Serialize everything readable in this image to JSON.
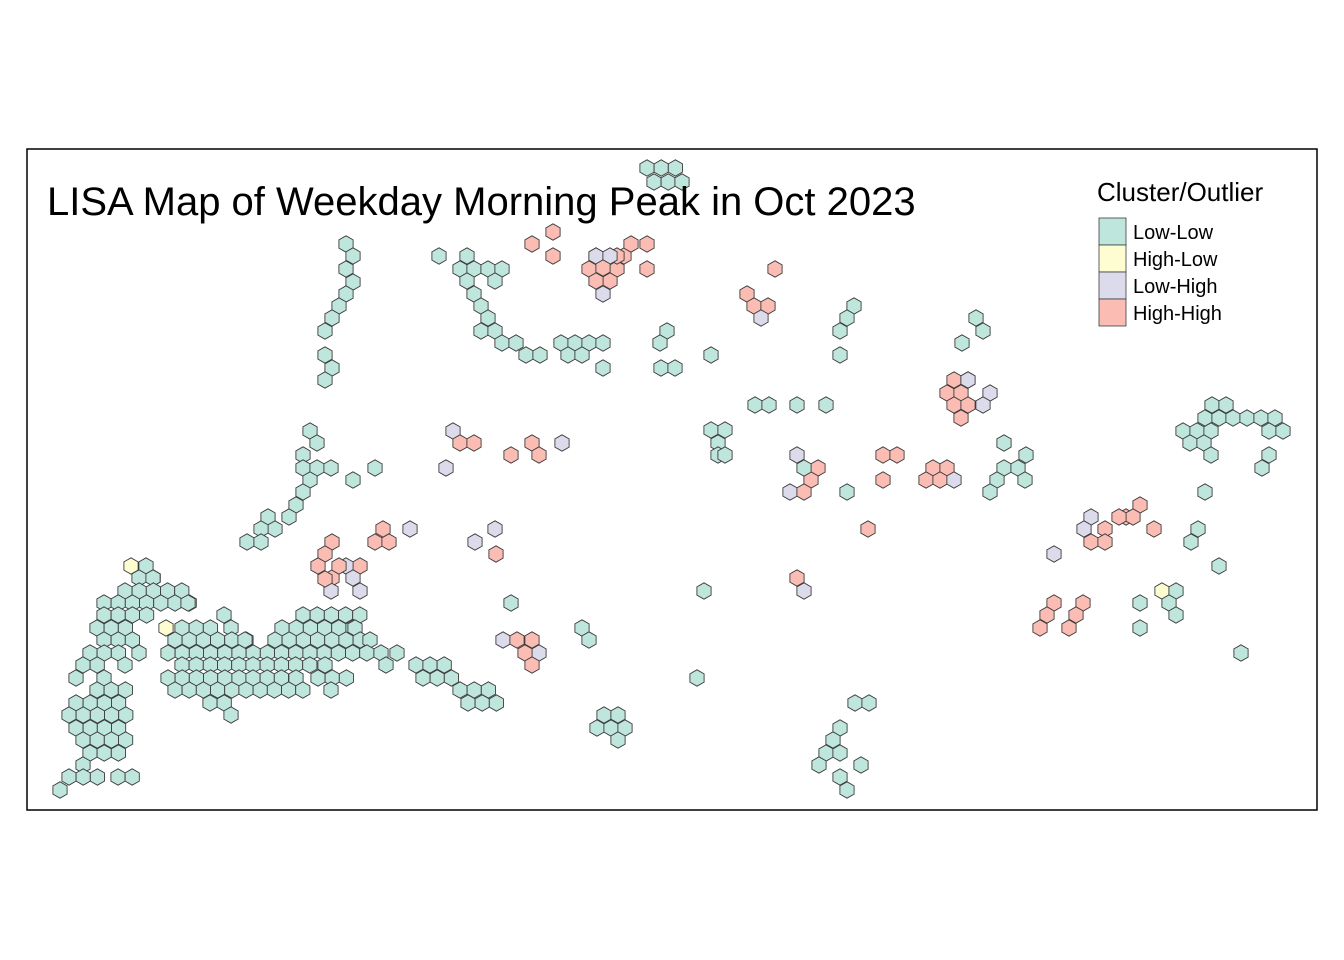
{
  "map": {
    "title": "LISA Map of Weekday Morning Peak in Oct 2023",
    "legend": {
      "title": "Cluster/Outlier",
      "items": [
        {
          "key": "low_low",
          "label": "Low-Low",
          "color": "#bfe6dc"
        },
        {
          "key": "high_low",
          "label": "High-Low",
          "color": "#fdfdd1"
        },
        {
          "key": "low_high",
          "label": "Low-High",
          "color": "#dcdbeb"
        },
        {
          "key": "high_high",
          "label": "High-High",
          "color": "#fbbcb4"
        }
      ]
    },
    "colors": {
      "border": "#000000",
      "hex_stroke": "#3c3c3c",
      "background": "#ffffff"
    }
  }
}
